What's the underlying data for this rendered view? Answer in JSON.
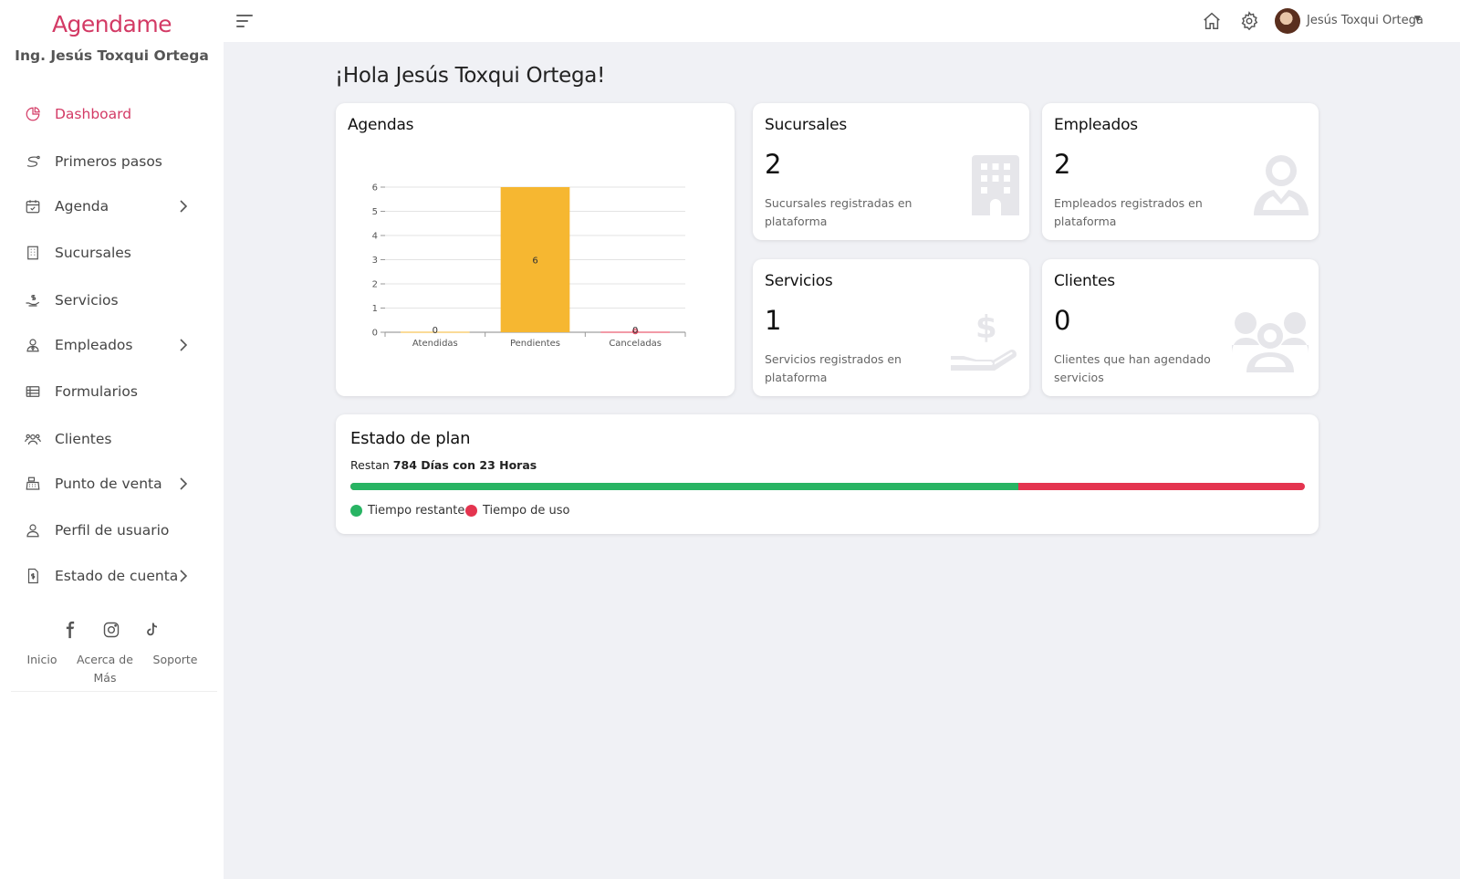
{
  "app": {
    "brand": "Agendame",
    "account_name": "Ing. Jesús Toxqui Ortega"
  },
  "sidebar": {
    "items": [
      {
        "label": "Dashboard",
        "icon": "pie-chart-icon",
        "active": true
      },
      {
        "label": "Primeros pasos",
        "icon": "path-icon"
      },
      {
        "label": "Agenda",
        "icon": "calendar-check-icon",
        "has_submenu": true
      },
      {
        "label": "Sucursales",
        "icon": "building-icon"
      },
      {
        "label": "Servicios",
        "icon": "hand-dollar-icon"
      },
      {
        "label": "Empleados",
        "icon": "user-tie-icon",
        "has_submenu": true
      },
      {
        "label": "Formularios",
        "icon": "table-icon"
      },
      {
        "label": "Clientes",
        "icon": "users-icon"
      },
      {
        "label": "Punto de venta",
        "icon": "cash-register-icon",
        "has_submenu": true
      },
      {
        "label": "Perfil de usuario",
        "icon": "user-icon"
      },
      {
        "label": "Estado de cuenta",
        "icon": "invoice-icon",
        "has_submenu": true
      }
    ],
    "social": [
      "facebook-icon",
      "instagram-icon",
      "tiktok-icon"
    ],
    "footer_links": [
      "Inicio",
      "Acerca de Más",
      "Soporte"
    ]
  },
  "topbar": {
    "user_name": "Jesús Toxqui Ortega"
  },
  "main": {
    "greeting": "¡Hola Jesús Toxqui Ortega!",
    "agendas_title": "Agendas",
    "stats": [
      {
        "title": "Sucursales",
        "value": "2",
        "description": "Sucursales registradas en plataforma",
        "icon": "building-icon"
      },
      {
        "title": "Empleados",
        "value": "2",
        "description": "Empleados registrados en plataforma",
        "icon": "employee-icon"
      },
      {
        "title": "Servicios",
        "value": "1",
        "description": "Servicios registrados en plataforma",
        "icon": "hand-dollar-icon"
      },
      {
        "title": "Clientes",
        "value": "0",
        "description": "Clientes que han agendado servicios",
        "icon": "users-icon"
      }
    ],
    "plan": {
      "title": "Estado de plan",
      "remaining_prefix": "Restan",
      "remaining_value": "784 Días con 23 Horas",
      "remaining_fraction": 0.7,
      "legend": [
        {
          "label": "Tiempo restante",
          "color": "#28b463"
        },
        {
          "label": "Tiempo de uso",
          "color": "#e4344f"
        }
      ]
    }
  },
  "chart_data": {
    "type": "bar",
    "categories": [
      "Atendidas",
      "Pendientes",
      "Canceladas"
    ],
    "values": [
      0,
      6,
      0
    ],
    "data_labels": [
      "0",
      "6",
      "0"
    ],
    "ylim": [
      0,
      6
    ],
    "yticks": [
      "0",
      "1",
      "2",
      "3",
      "4",
      "5",
      "6"
    ],
    "grid": true,
    "colors": [
      "#f6b731",
      "#f6b731",
      "#e4344f"
    ]
  },
  "colors": {
    "accent": "#d33a65",
    "background": "#f0f1f5"
  }
}
